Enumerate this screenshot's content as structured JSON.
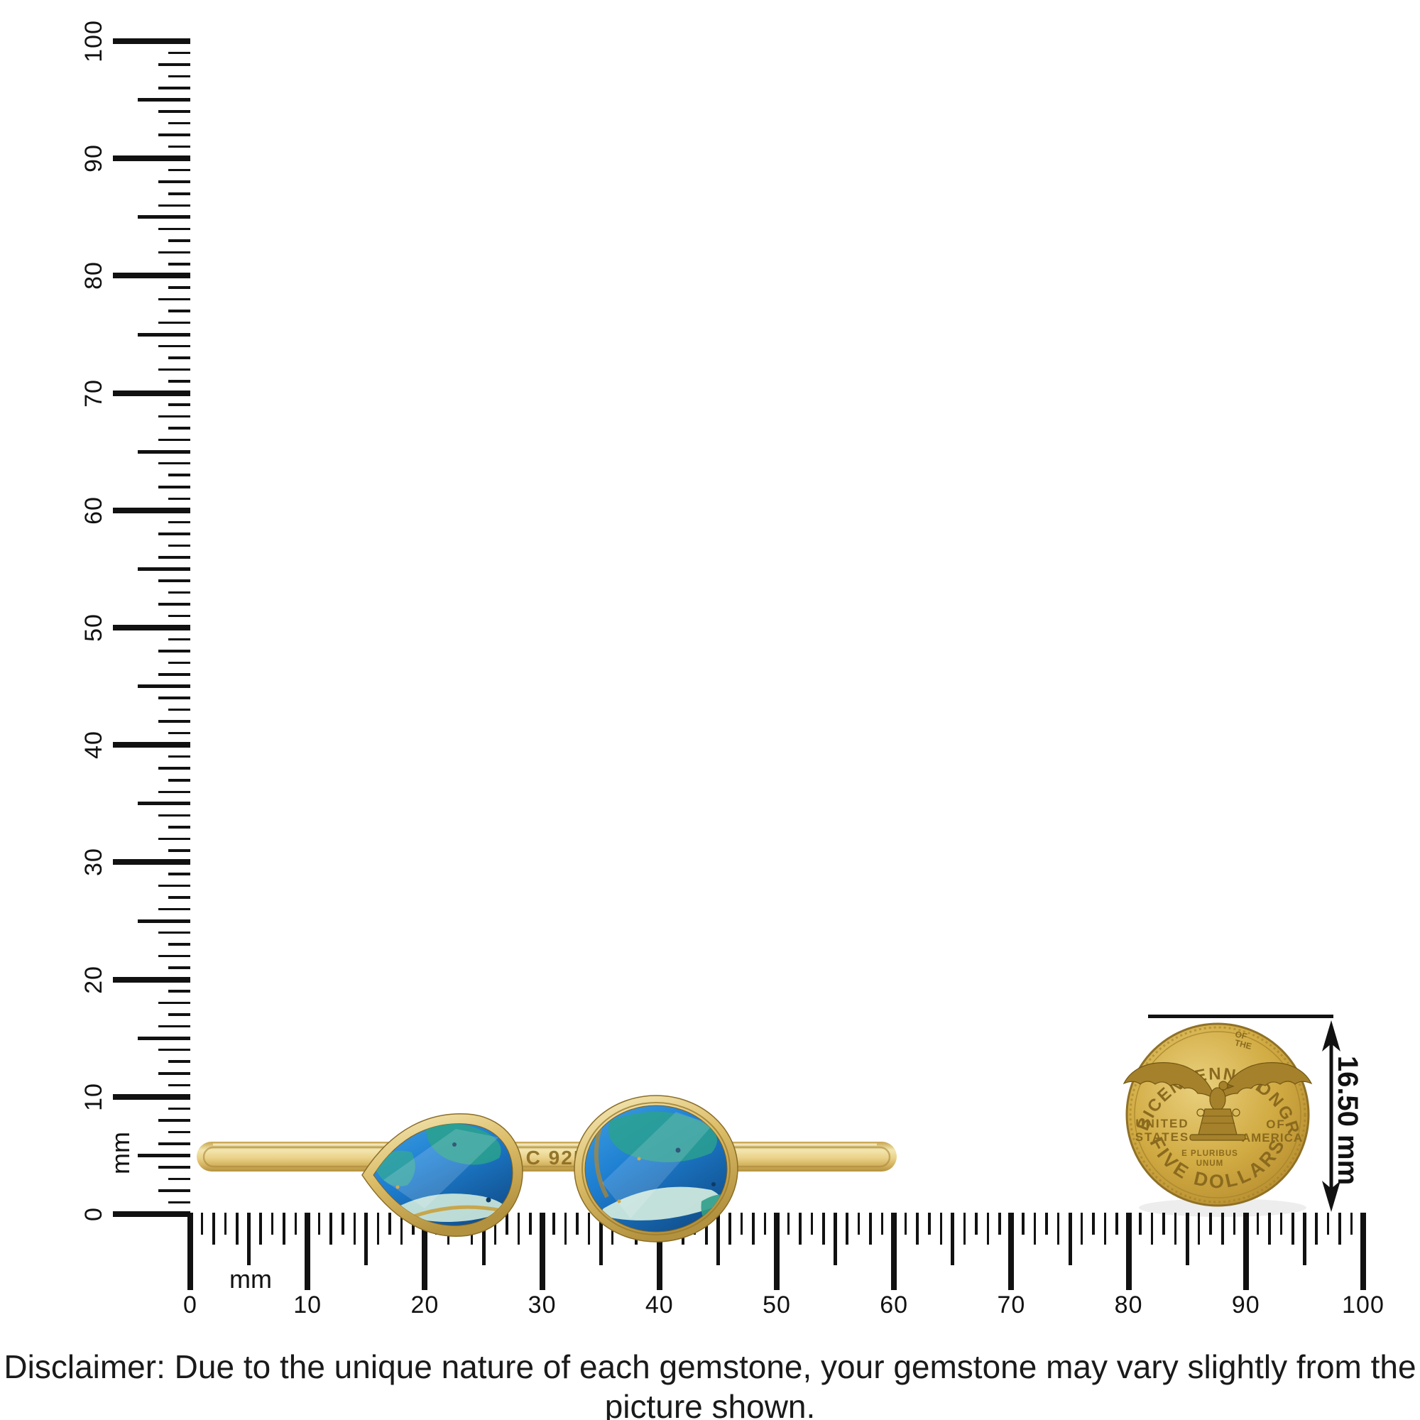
{
  "scene": {
    "background": "#ffffff",
    "ink_color": "#111111"
  },
  "rulers": {
    "unit_label": "mm",
    "vertical": {
      "min_mm": 0,
      "max_mm": 100,
      "numbered_every_mm": 10,
      "labels": [
        "0",
        "10",
        "20",
        "30",
        "40",
        "50",
        "60",
        "70",
        "80",
        "90",
        "100"
      ]
    },
    "horizontal": {
      "min_mm": 0,
      "max_mm": 100,
      "numbered_every_mm": 10,
      "labels": [
        "0",
        "10",
        "20",
        "30",
        "40",
        "50",
        "60",
        "70",
        "80",
        "90",
        "100"
      ]
    }
  },
  "product": {
    "stamp": "C 925",
    "colors": {
      "metal_light": "#f3e6ae",
      "metal_mid": "#e2c87e",
      "metal_dark": "#b3923f",
      "stone_blue": "#1e7fd2",
      "stone_deep_blue": "#11518f",
      "stone_teal": "#2aa28c",
      "stone_pale": "#d6eee0",
      "stone_gold_fleck": "#c9992b"
    }
  },
  "coin": {
    "color_base": "#d2ac44",
    "texts": {
      "arc_top_left": "BICENTENNIAL",
      "arc_top_small_line1": "OF",
      "arc_top_small_line2": "THE",
      "arc_top_right": "CONGRESS",
      "left_line1": "UNITED",
      "left_line2": "STATES",
      "right_line1": "OF",
      "right_line2": "AMERICA",
      "motto_line1": "E PLURIBUS",
      "motto_line2": "UNUM",
      "arc_bottom": "FIVE DOLLARS"
    }
  },
  "dimension": {
    "label": "16.50 mm"
  },
  "disclaimer": "Disclaimer: Due to the unique nature of each gemstone, your gemstone may vary slightly from the picture shown."
}
